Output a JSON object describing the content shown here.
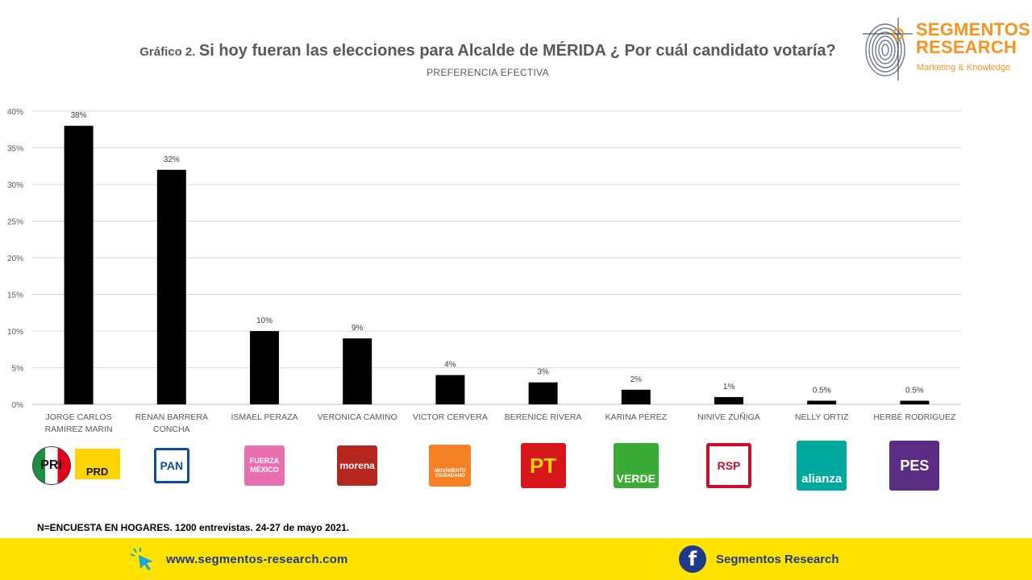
{
  "title": {
    "prefix": "Gráfico 2.",
    "main": "Si hoy fueran las elecciones para Alcalde de MÉRIDA ¿ Por cuál candidato votaría?",
    "subtitle": "PREFERENCIA EFECTIVA"
  },
  "logo": {
    "name_line1": "SEGMENTOS",
    "name_line2": "RESEARCH",
    "tagline": "Marketing & Knowledge",
    "color": "#f7931e"
  },
  "chart_data": {
    "type": "bar",
    "categories": [
      [
        "JORGE CARLOS",
        "RAMIREZ MARIN"
      ],
      [
        "RENAN BARRERA",
        "CONCHA"
      ],
      [
        "ISMAEL PERAZA"
      ],
      [
        "VERONICA CAMINO"
      ],
      [
        "VICTOR CERVERA"
      ],
      [
        "BERENICE RIVERA"
      ],
      [
        "KARINA PÉREZ"
      ],
      [
        "NINIVE ZUÑIGA"
      ],
      [
        "NELLY ORTIZ"
      ],
      [
        "HERBÉ RODRIGUEZ"
      ]
    ],
    "values": [
      38,
      32,
      10,
      9,
      4,
      3,
      2,
      1,
      0.5,
      0.5
    ],
    "data_labels": [
      "38%",
      "32%",
      "10%",
      "9%",
      "4%",
      "3%",
      "2%",
      "1%",
      "0.5%",
      "0.5%"
    ],
    "yticks": [
      "0%",
      "5%",
      "10%",
      "15%",
      "20%",
      "25%",
      "30%",
      "35%",
      "40%"
    ],
    "ylim": [
      0,
      40
    ],
    "grid": true,
    "bar_color": "#000000"
  },
  "parties": [
    {
      "icon": "pri-prd-logo",
      "labels": [
        "PRI",
        "PRD"
      ],
      "colors": [
        "#e2001a",
        "#ffd400"
      ]
    },
    {
      "icon": "pan-logo",
      "label": "PAN",
      "color": "#0a4c9b"
    },
    {
      "icon": "fuerza-mexico-logo",
      "label": "FUERZA MÉXICO",
      "color": "#ea6fb1"
    },
    {
      "icon": "morena-logo",
      "label": "morena",
      "color": "#b5261e"
    },
    {
      "icon": "movimiento-ciudadano-logo",
      "label": "MOVIMIENTO CIUDADANO",
      "color": "#f58025"
    },
    {
      "icon": "pt-logo",
      "label": "PT",
      "color": "#d7151b"
    },
    {
      "icon": "verde-logo",
      "label": "VERDE",
      "color": "#3aab35"
    },
    {
      "icon": "rsp-logo",
      "label": "RSP",
      "color": "#c8102e"
    },
    {
      "icon": "nueva-alianza-logo",
      "label": "alianza",
      "color": "#00a99d"
    },
    {
      "icon": "pes-logo",
      "label": "PES",
      "color": "#5b2c83"
    }
  ],
  "note": "N=ENCUESTA EN HOGARES. 1200 entrevistas. 24-27 de mayo 2021.",
  "footer": {
    "website": "www.segmentos-research.com",
    "facebook": "Segmentos Research",
    "bg": "#ffe200"
  }
}
